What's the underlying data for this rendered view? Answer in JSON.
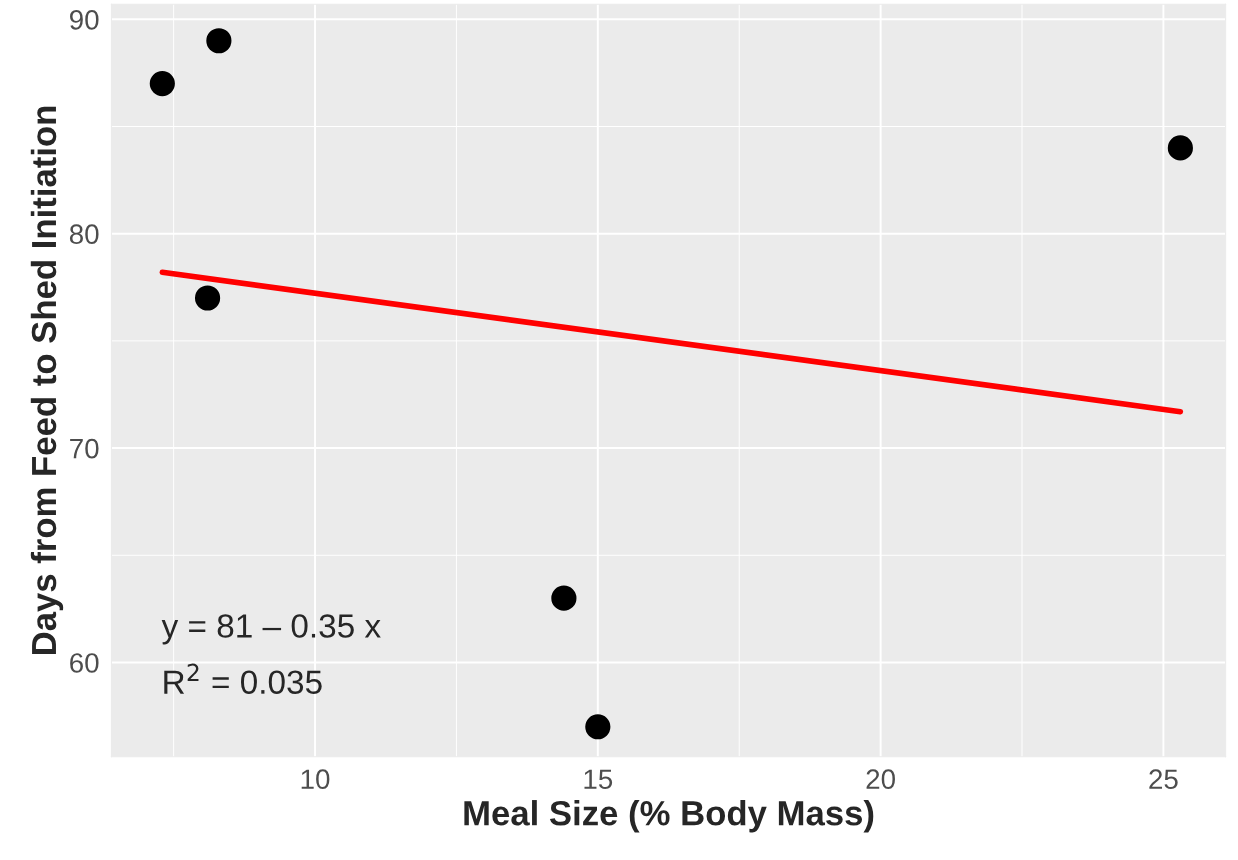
{
  "chart_data": {
    "type": "scatter",
    "xlabel": "Meal Size (% Body Mass)",
    "ylabel": "Days from Feed to Shed Initiation",
    "series": [
      {
        "color": "#000000",
        "x": [
          7.3,
          8.3,
          8.1,
          14.4,
          15.0,
          25.3
        ],
        "values": [
          87,
          89,
          77,
          63,
          57,
          84
        ],
        "marker": "circle"
      },
      {
        "type": "line",
        "color": "#ff0000",
        "x": [
          7.3,
          25.3
        ],
        "values": [
          78.2,
          71.7
        ],
        "line_style": "solid"
      }
    ],
    "xlim": [
      6.4,
      26.1
    ],
    "ylim": [
      55.6,
      90.7
    ],
    "xticks": [
      10,
      15,
      20,
      25
    ],
    "yticks": [
      60,
      70,
      80,
      90
    ],
    "grid": true,
    "annotations": [
      "y = 81 – 0.35 x",
      "R$^{2}$ = 0.035"
    ]
  }
}
